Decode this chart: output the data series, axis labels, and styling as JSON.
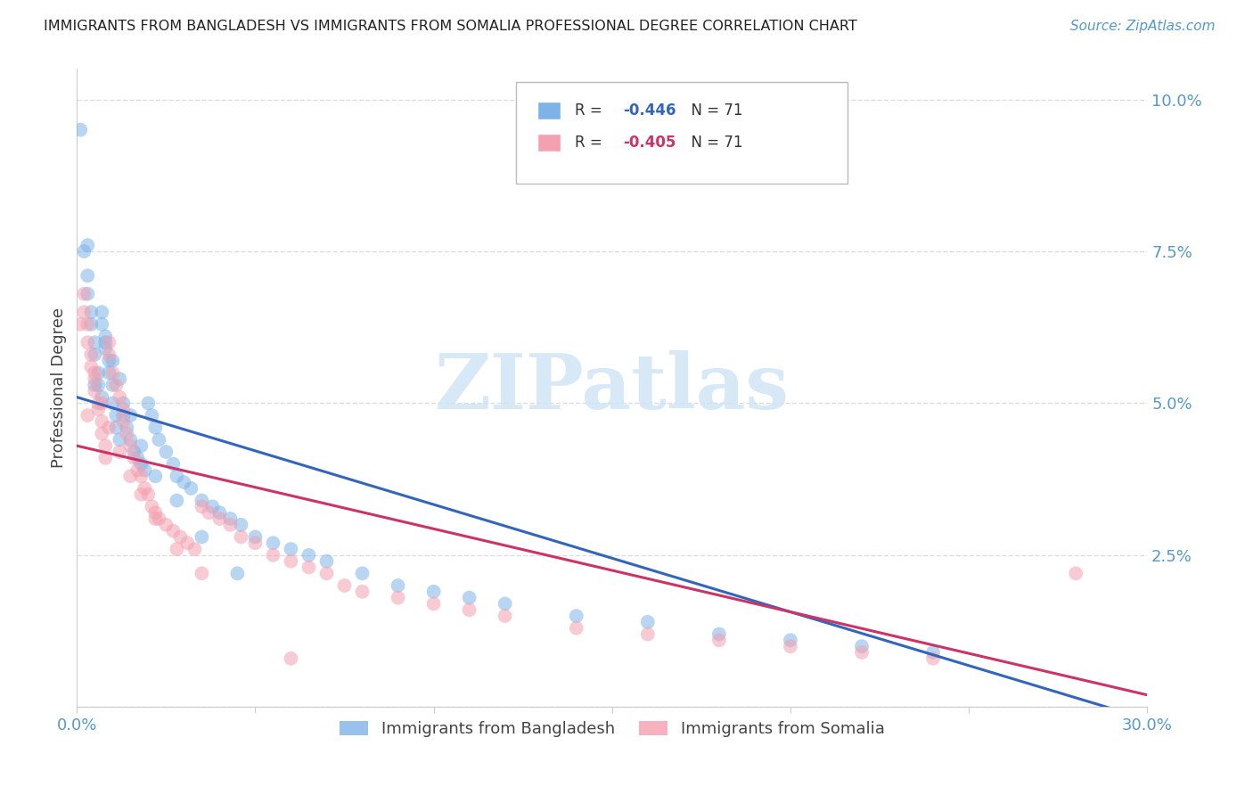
{
  "title": "IMMIGRANTS FROM BANGLADESH VS IMMIGRANTS FROM SOMALIA PROFESSIONAL DEGREE CORRELATION CHART",
  "source": "Source: ZipAtlas.com",
  "ylabel_label": "Professional Degree",
  "x_min": 0.0,
  "x_max": 0.3,
  "y_min": 0.0,
  "y_max": 0.105,
  "x_tick_positions": [
    0.0,
    0.05,
    0.1,
    0.15,
    0.2,
    0.25,
    0.3
  ],
  "x_tick_labels": [
    "0.0%",
    "",
    "",
    "",
    "",
    "",
    "30.0%"
  ],
  "y_tick_positions": [
    0.0,
    0.025,
    0.05,
    0.075,
    0.1
  ],
  "y_tick_labels": [
    "",
    "2.5%",
    "5.0%",
    "7.5%",
    "10.0%"
  ],
  "legend_labels_bottom": [
    "Immigrants from Bangladesh",
    "Immigrants from Somalia"
  ],
  "color_bangladesh": "#7EB3E8",
  "color_somalia": "#F4A0B0",
  "line_color_bangladesh": "#3366BB",
  "line_color_somalia": "#CC3366",
  "watermark_text": "ZIPatlas",
  "watermark_color": "#D0E4F5",
  "r_bangladesh": "-0.446",
  "r_somalia": "-0.405",
  "n_bangladesh": "71",
  "n_somalia": "71",
  "bg_color": "#ffffff",
  "grid_color": "#dddddd",
  "tick_color": "#5599cc",
  "axis_color": "#cccccc",
  "title_color": "#222222",
  "source_color": "#5599cc",
  "bangladesh_line_x0": 0.0,
  "bangladesh_line_y0": 0.051,
  "bangladesh_line_x1": 0.3,
  "bangladesh_line_y1": -0.002,
  "somalia_line_x0": 0.0,
  "somalia_line_y0": 0.043,
  "somalia_line_x1": 0.3,
  "somalia_line_y1": 0.002,
  "bangladesh_points_x": [
    0.001,
    0.002,
    0.003,
    0.003,
    0.004,
    0.004,
    0.005,
    0.005,
    0.006,
    0.006,
    0.007,
    0.007,
    0.007,
    0.008,
    0.008,
    0.009,
    0.009,
    0.01,
    0.01,
    0.011,
    0.011,
    0.012,
    0.013,
    0.013,
    0.014,
    0.015,
    0.016,
    0.017,
    0.018,
    0.019,
    0.02,
    0.021,
    0.022,
    0.023,
    0.025,
    0.027,
    0.028,
    0.03,
    0.032,
    0.035,
    0.038,
    0.04,
    0.043,
    0.046,
    0.05,
    0.055,
    0.06,
    0.065,
    0.07,
    0.08,
    0.09,
    0.1,
    0.11,
    0.12,
    0.14,
    0.16,
    0.18,
    0.2,
    0.22,
    0.24,
    0.005,
    0.008,
    0.01,
    0.012,
    0.015,
    0.018,
    0.022,
    0.028,
    0.035,
    0.045,
    0.003
  ],
  "bangladesh_points_y": [
    0.095,
    0.075,
    0.071,
    0.068,
    0.065,
    0.063,
    0.06,
    0.058,
    0.055,
    0.053,
    0.051,
    0.065,
    0.063,
    0.061,
    0.059,
    0.057,
    0.055,
    0.053,
    0.05,
    0.048,
    0.046,
    0.044,
    0.05,
    0.048,
    0.046,
    0.044,
    0.042,
    0.041,
    0.04,
    0.039,
    0.05,
    0.048,
    0.046,
    0.044,
    0.042,
    0.04,
    0.038,
    0.037,
    0.036,
    0.034,
    0.033,
    0.032,
    0.031,
    0.03,
    0.028,
    0.027,
    0.026,
    0.025,
    0.024,
    0.022,
    0.02,
    0.019,
    0.018,
    0.017,
    0.015,
    0.014,
    0.012,
    0.011,
    0.01,
    0.009,
    0.053,
    0.06,
    0.057,
    0.054,
    0.048,
    0.043,
    0.038,
    0.034,
    0.028,
    0.022,
    0.076
  ],
  "somalia_points_x": [
    0.001,
    0.002,
    0.002,
    0.003,
    0.003,
    0.004,
    0.004,
    0.005,
    0.005,
    0.006,
    0.006,
    0.007,
    0.007,
    0.008,
    0.008,
    0.009,
    0.009,
    0.01,
    0.011,
    0.012,
    0.013,
    0.013,
    0.014,
    0.015,
    0.016,
    0.017,
    0.018,
    0.019,
    0.02,
    0.021,
    0.022,
    0.023,
    0.025,
    0.027,
    0.029,
    0.031,
    0.033,
    0.035,
    0.037,
    0.04,
    0.043,
    0.046,
    0.05,
    0.055,
    0.06,
    0.065,
    0.07,
    0.075,
    0.08,
    0.09,
    0.1,
    0.11,
    0.12,
    0.14,
    0.16,
    0.18,
    0.2,
    0.22,
    0.24,
    0.28,
    0.003,
    0.005,
    0.007,
    0.009,
    0.012,
    0.015,
    0.018,
    0.022,
    0.028,
    0.035,
    0.06
  ],
  "somalia_points_y": [
    0.063,
    0.068,
    0.065,
    0.063,
    0.06,
    0.058,
    0.056,
    0.054,
    0.052,
    0.05,
    0.049,
    0.047,
    0.045,
    0.043,
    0.041,
    0.06,
    0.058,
    0.055,
    0.053,
    0.051,
    0.049,
    0.047,
    0.045,
    0.043,
    0.041,
    0.039,
    0.038,
    0.036,
    0.035,
    0.033,
    0.032,
    0.031,
    0.03,
    0.029,
    0.028,
    0.027,
    0.026,
    0.033,
    0.032,
    0.031,
    0.03,
    0.028,
    0.027,
    0.025,
    0.024,
    0.023,
    0.022,
    0.02,
    0.019,
    0.018,
    0.017,
    0.016,
    0.015,
    0.013,
    0.012,
    0.011,
    0.01,
    0.009,
    0.008,
    0.022,
    0.048,
    0.055,
    0.05,
    0.046,
    0.042,
    0.038,
    0.035,
    0.031,
    0.026,
    0.022,
    0.008
  ]
}
